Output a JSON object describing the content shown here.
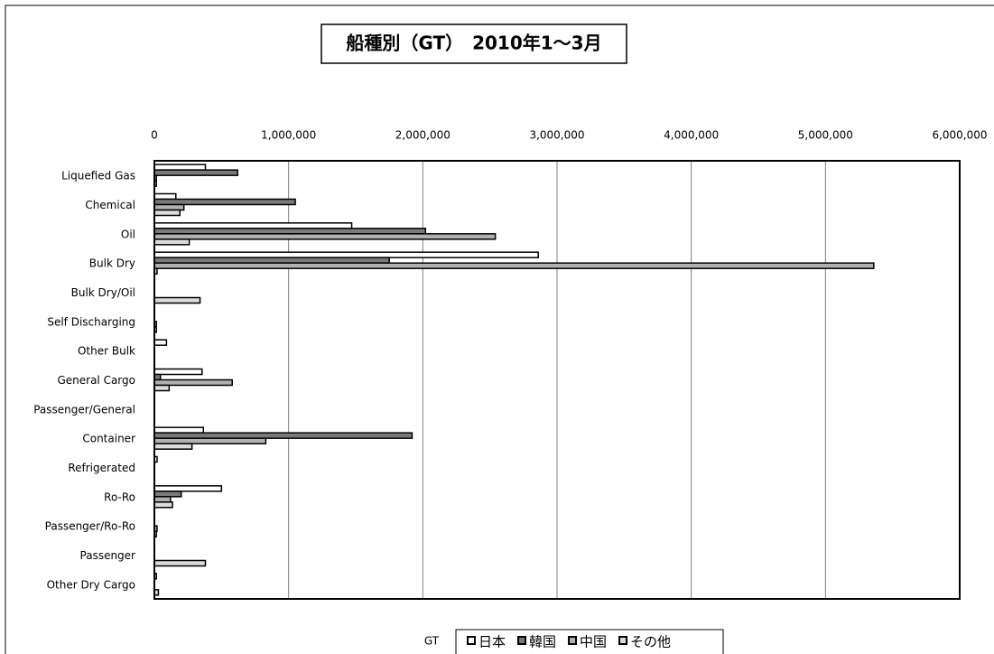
{
  "chart_data": {
    "type": "hbar",
    "title": "船種別（GT）　2010年1～3月",
    "legend_title": "GT",
    "categories": [
      "Liquefied Gas",
      "Chemical",
      "Oil",
      "Bulk Dry",
      "Bulk Dry/Oil",
      "Self Discharging",
      "Other Bulk",
      "General Cargo",
      "Passenger/General",
      "Container",
      "Refrigerated",
      "Ro-Ro",
      "Passenger/Ro-Ro",
      "Passenger",
      "Other Dry Cargo"
    ],
    "series": [
      {
        "name": "日本",
        "color": "#ffffff",
        "values": [
          380000,
          160000,
          1470000,
          2860000,
          0,
          0,
          90000,
          355000,
          0,
          365000,
          20000,
          500000,
          0,
          0,
          15000
        ]
      },
      {
        "name": "韓国",
        "color": "#7a7a7a",
        "values": [
          620000,
          1050000,
          2020000,
          1750000,
          0,
          0,
          0,
          45000,
          0,
          1920000,
          0,
          200000,
          0,
          0,
          0
        ]
      },
      {
        "name": "中国",
        "color": "#b0b0b0",
        "values": [
          15000,
          220000,
          2540000,
          5360000,
          0,
          15000,
          0,
          580000,
          0,
          830000,
          0,
          120000,
          20000,
          0,
          0
        ]
      },
      {
        "name": "その他",
        "color": "#dcdcdc",
        "values": [
          15000,
          190000,
          260000,
          20000,
          340000,
          15000,
          0,
          110000,
          0,
          280000,
          0,
          135000,
          15000,
          380000,
          30000
        ]
      }
    ],
    "xlim": [
      0,
      6000000
    ],
    "xticks": [
      0,
      {
        "value": 1000000,
        "label": "1,000,000"
      },
      {
        "value": 2000000,
        "label": "2,000,000"
      },
      {
        "value": 3000000,
        "label": "3,000,000"
      },
      {
        "value": 4000000,
        "label": "4,000,000"
      },
      {
        "value": 5000000,
        "label": "5,000,000"
      },
      {
        "value": 6000000,
        "label": "6,000,000"
      }
    ],
    "grid": true,
    "legend": "bottom"
  }
}
